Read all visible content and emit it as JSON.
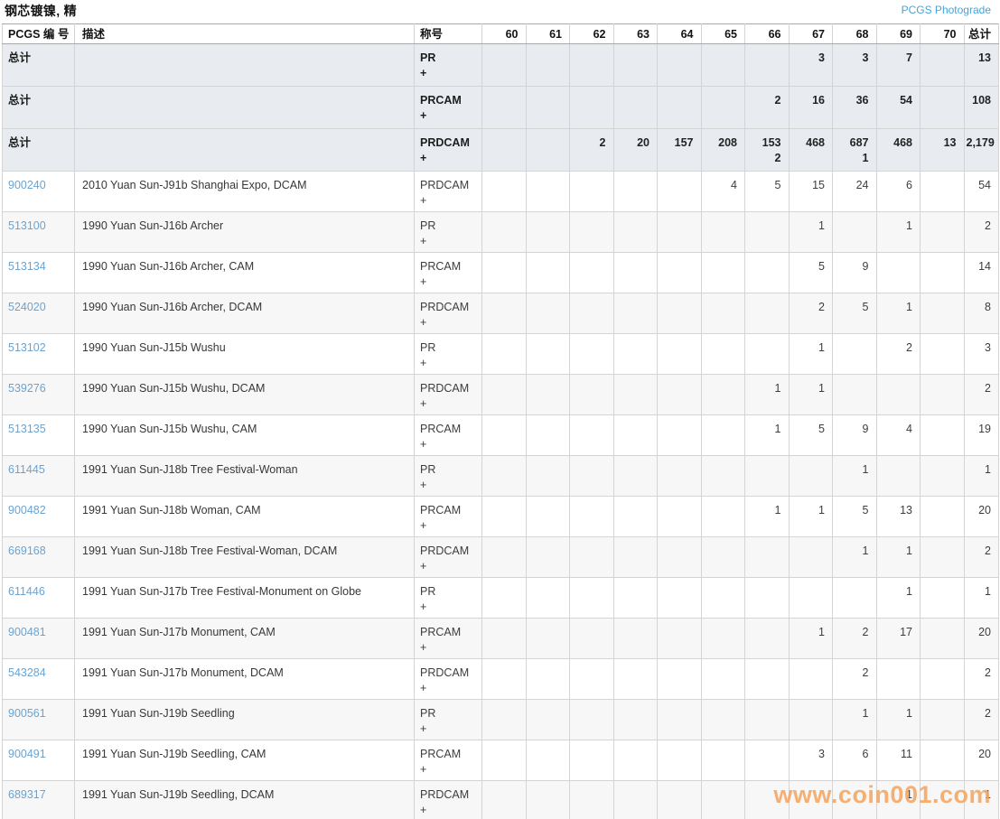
{
  "page": {
    "title": "钢芯镀镍, 精",
    "photograde_link": "PCGS Photograde",
    "watermark": "www.coin001.com"
  },
  "colors": {
    "link_blue": "#6ba3d0",
    "photograde_link_blue": "#45a4d9",
    "summary_row_bg": "#e8ecf1",
    "alt_row_bg": "#f7f7f7",
    "grid_border": "#d4d4d4",
    "watermark_orange": "#f5a661"
  },
  "table": {
    "headers": {
      "pcgs_no": "PCGS 编 号",
      "description": "描述",
      "designation": "称号",
      "grades": [
        "60",
        "61",
        "62",
        "63",
        "64",
        "65",
        "66",
        "67",
        "68",
        "69",
        "70"
      ],
      "total": "总计"
    },
    "summary_label": "总计",
    "summary_rows": [
      {
        "designation": "PR",
        "plus": "+",
        "values": [
          "",
          "",
          "",
          "",
          "",
          "",
          "",
          "3",
          "3",
          "7",
          ""
        ],
        "plus_values": [
          "",
          "",
          "",
          "",
          "",
          "",
          "",
          "",
          "",
          "",
          ""
        ],
        "total": "13"
      },
      {
        "designation": "PRCAM",
        "plus": "+",
        "values": [
          "",
          "",
          "",
          "",
          "",
          "",
          "2",
          "16",
          "36",
          "54",
          ""
        ],
        "plus_values": [
          "",
          "",
          "",
          "",
          "",
          "",
          "",
          "",
          "",
          "",
          ""
        ],
        "total": "108"
      },
      {
        "designation": "PRDCAM",
        "plus": "+",
        "values": [
          "",
          "",
          "2",
          "20",
          "157",
          "208",
          "153",
          "468",
          "687",
          "468",
          "13"
        ],
        "plus_values": [
          "",
          "",
          "",
          "",
          "",
          "",
          "2",
          "",
          "1",
          "",
          ""
        ],
        "total": "2,179"
      }
    ],
    "rows": [
      {
        "pcgs_no": "900240",
        "description": "2010 Yuan Sun-J91b Shanghai Expo, DCAM",
        "designation": "PRDCAM",
        "plus": "+",
        "values": [
          "",
          "",
          "",
          "",
          "",
          "4",
          "5",
          "15",
          "24",
          "6",
          ""
        ],
        "total": "54"
      },
      {
        "pcgs_no": "513100",
        "description": "1990 Yuan Sun-J16b Archer",
        "designation": "PR",
        "plus": "+",
        "values": [
          "",
          "",
          "",
          "",
          "",
          "",
          "",
          "1",
          "",
          "1",
          ""
        ],
        "total": "2"
      },
      {
        "pcgs_no": "513134",
        "description": "1990 Yuan Sun-J16b Archer, CAM",
        "designation": "PRCAM",
        "plus": "+",
        "values": [
          "",
          "",
          "",
          "",
          "",
          "",
          "",
          "5",
          "9",
          "",
          ""
        ],
        "total": "14"
      },
      {
        "pcgs_no": "524020",
        "description": "1990 Yuan Sun-J16b Archer, DCAM",
        "designation": "PRDCAM",
        "plus": "+",
        "values": [
          "",
          "",
          "",
          "",
          "",
          "",
          "",
          "2",
          "5",
          "1",
          ""
        ],
        "total": "8"
      },
      {
        "pcgs_no": "513102",
        "description": "1990 Yuan Sun-J15b Wushu",
        "designation": "PR",
        "plus": "+",
        "values": [
          "",
          "",
          "",
          "",
          "",
          "",
          "",
          "1",
          "",
          "2",
          ""
        ],
        "total": "3"
      },
      {
        "pcgs_no": "539276",
        "description": "1990 Yuan Sun-J15b Wushu, DCAM",
        "designation": "PRDCAM",
        "plus": "+",
        "values": [
          "",
          "",
          "",
          "",
          "",
          "",
          "1",
          "1",
          "",
          "",
          ""
        ],
        "total": "2"
      },
      {
        "pcgs_no": "513135",
        "description": "1990 Yuan Sun-J15b Wushu, CAM",
        "designation": "PRCAM",
        "plus": "+",
        "values": [
          "",
          "",
          "",
          "",
          "",
          "",
          "1",
          "5",
          "9",
          "4",
          ""
        ],
        "total": "19"
      },
      {
        "pcgs_no": "611445",
        "description": "1991 Yuan Sun-J18b Tree Festival-Woman",
        "designation": "PR",
        "plus": "+",
        "values": [
          "",
          "",
          "",
          "",
          "",
          "",
          "",
          "",
          "1",
          "",
          ""
        ],
        "total": "1"
      },
      {
        "pcgs_no": "900482",
        "description": "1991 Yuan Sun-J18b Woman, CAM",
        "designation": "PRCAM",
        "plus": "+",
        "values": [
          "",
          "",
          "",
          "",
          "",
          "",
          "1",
          "1",
          "5",
          "13",
          ""
        ],
        "total": "20"
      },
      {
        "pcgs_no": "669168",
        "description": "1991 Yuan Sun-J18b Tree Festival-Woman, DCAM",
        "designation": "PRDCAM",
        "plus": "+",
        "values": [
          "",
          "",
          "",
          "",
          "",
          "",
          "",
          "",
          "1",
          "1",
          ""
        ],
        "total": "2"
      },
      {
        "pcgs_no": "611446",
        "description": "1991 Yuan Sun-J17b Tree Festival-Monument on Globe",
        "designation": "PR",
        "plus": "+",
        "values": [
          "",
          "",
          "",
          "",
          "",
          "",
          "",
          "",
          "",
          "1",
          ""
        ],
        "total": "1"
      },
      {
        "pcgs_no": "900481",
        "description": "1991 Yuan Sun-J17b Monument, CAM",
        "designation": "PRCAM",
        "plus": "+",
        "values": [
          "",
          "",
          "",
          "",
          "",
          "",
          "",
          "1",
          "2",
          "17",
          ""
        ],
        "total": "20"
      },
      {
        "pcgs_no": "543284",
        "description": "1991 Yuan Sun-J17b Monument, DCAM",
        "designation": "PRDCAM",
        "plus": "+",
        "values": [
          "",
          "",
          "",
          "",
          "",
          "",
          "",
          "",
          "2",
          "",
          ""
        ],
        "total": "2"
      },
      {
        "pcgs_no": "900561",
        "description": "1991 Yuan Sun-J19b Seedling",
        "designation": "PR",
        "plus": "+",
        "values": [
          "",
          "",
          "",
          "",
          "",
          "",
          "",
          "",
          "1",
          "1",
          ""
        ],
        "total": "2"
      },
      {
        "pcgs_no": "900491",
        "description": "1991 Yuan Sun-J19b Seedling, CAM",
        "designation": "PRCAM",
        "plus": "+",
        "values": [
          "",
          "",
          "",
          "",
          "",
          "",
          "",
          "3",
          "6",
          "11",
          ""
        ],
        "total": "20"
      },
      {
        "pcgs_no": "689317",
        "description": "1991 Yuan Sun-J19b Seedling, DCAM",
        "designation": "PRDCAM",
        "plus": "+",
        "values": [
          "",
          "",
          "",
          "",
          "",
          "",
          "",
          "",
          "",
          "1",
          ""
        ],
        "total": "1"
      }
    ]
  }
}
